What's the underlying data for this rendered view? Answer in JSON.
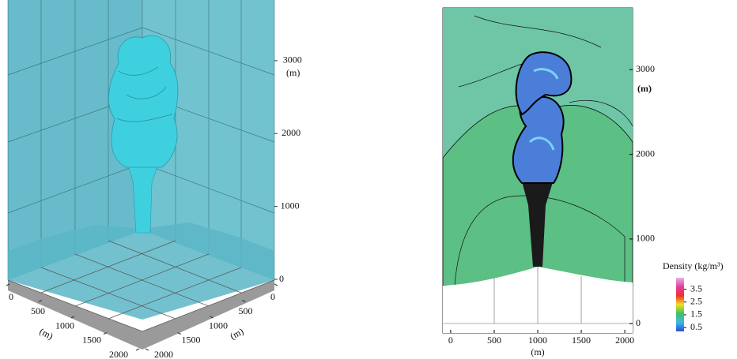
{
  "chart_data": [
    {
      "type": "isosurface",
      "color": "#3fd0e0",
      "xlim": [
        0,
        2000
      ],
      "xticks": [
        0,
        500,
        1000,
        1500,
        2000
      ],
      "xlabel": "(m)",
      "ylim": [
        0,
        2000
      ],
      "yticks": [
        0,
        500,
        1000,
        1500,
        2000
      ],
      "ylabel": "(m)",
      "zlim": [
        0,
        3800
      ],
      "zticks": [
        0,
        1000,
        2000,
        3000
      ],
      "zlabel": "(m)"
    },
    {
      "type": "contour",
      "xlim": [
        -90,
        2090
      ],
      "xticks": [
        0,
        500,
        1000,
        1500,
        2000
      ],
      "xlabel": "(m)",
      "ylim": [
        -110,
        3730
      ],
      "yticks": [
        0,
        1000,
        2000,
        3000
      ],
      "ylabel": "(m)",
      "colorbar": {
        "label": "Density (kg/m³)",
        "lim": [
          0.2,
          4.4
        ],
        "ticks": [
          0.5,
          1.5,
          2.5,
          3.5
        ],
        "colors": [
          "#2a4fd0",
          "#3fb8e8",
          "#40c060",
          "#f0e020",
          "#f03030",
          "#e040a0",
          "#e8b0e0"
        ]
      }
    }
  ]
}
